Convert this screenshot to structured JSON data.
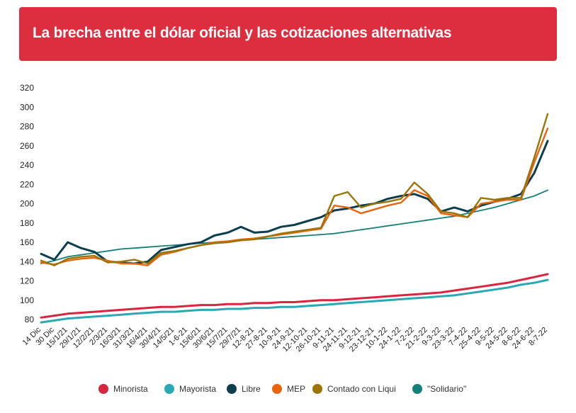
{
  "title": "La brecha entre el dólar oficial y las cotizaciones alternativas",
  "colors": {
    "banner": "#dd2e3f",
    "Minorista": "#d7263d",
    "Mayorista": "#2aa8b3",
    "Libre": "#0d3e4f",
    "MEP": "#e8650e",
    "Contado con Liqui": "#9a7408",
    "Solidario": "#167f77"
  },
  "legend": [
    {
      "key": "Minorista",
      "label": "Minorista"
    },
    {
      "key": "Mayorista",
      "label": "Mayorista"
    },
    {
      "key": "Libre",
      "label": "Libre"
    },
    {
      "key": "MEP",
      "label": "MEP"
    },
    {
      "key": "Contado con Liqui",
      "label": "Contado con Liqui"
    },
    {
      "key": "Solidario",
      "label": "\"Solidario\""
    }
  ],
  "chart_data": {
    "type": "line",
    "title": "La brecha entre el dólar oficial y las cotizaciones alternativas",
    "xlabel": "",
    "ylabel": "",
    "ylim": [
      70,
      320
    ],
    "yticks": [
      80,
      100,
      120,
      140,
      160,
      180,
      200,
      220,
      240,
      260,
      280,
      300,
      320
    ],
    "grid": false,
    "legend_position": "bottom",
    "x": [
      "14 Dic",
      "30 Dic",
      "15/1/21",
      "29/1/21",
      "12/2/21",
      "2/3/21",
      "16/3/21",
      "31/3/21",
      "16/4/21",
      "30/4/21",
      "14/5/21",
      "1-6-21",
      "15/6/21",
      "30/6/21",
      "15/7/21",
      "29/7/21",
      "12-8-21",
      "27-8-21",
      "10-9-21",
      "24-9-21",
      "12-10-21",
      "26-10-21",
      "9-11-21",
      "24-11-21",
      "9-12-21",
      "23-12-21",
      "10-1-22",
      "24-1-22",
      "7-2-22",
      "21-2-22",
      "9-3-22",
      "23-3-22",
      "7-4-22",
      "25-4-22",
      "9-5-22",
      "24-5-22",
      "8-6-22",
      "24-6-22",
      "8-7-22"
    ],
    "series": [
      {
        "name": "Minorista",
        "values": [
          82,
          84,
          86,
          87,
          88,
          89,
          90,
          91,
          92,
          93,
          93,
          94,
          95,
          95,
          96,
          96,
          97,
          97,
          98,
          98,
          99,
          100,
          100,
          101,
          102,
          103,
          104,
          105,
          106,
          107,
          108,
          110,
          112,
          114,
          116,
          118,
          121,
          124,
          127
        ]
      },
      {
        "name": "Mayorista",
        "values": [
          77,
          79,
          81,
          82,
          83,
          84,
          85,
          86,
          87,
          88,
          88,
          89,
          90,
          90,
          91,
          91,
          92,
          92,
          93,
          93,
          94,
          95,
          96,
          97,
          98,
          99,
          100,
          101,
          102,
          103,
          104,
          105,
          107,
          109,
          111,
          113,
          116,
          118,
          121
        ]
      },
      {
        "name": "Libre",
        "values": [
          148,
          142,
          160,
          154,
          150,
          140,
          139,
          138,
          140,
          152,
          155,
          158,
          160,
          167,
          170,
          176,
          170,
          171,
          176,
          178,
          182,
          186,
          193,
          195,
          198,
          200,
          205,
          208,
          210,
          205,
          192,
          196,
          192,
          198,
          202,
          205,
          210,
          232,
          265
        ]
      },
      {
        "name": "MEP",
        "values": [
          139,
          137,
          141,
          143,
          144,
          141,
          138,
          138,
          136,
          147,
          150,
          154,
          157,
          160,
          161,
          163,
          164,
          166,
          168,
          170,
          172,
          174,
          198,
          196,
          190,
          194,
          198,
          201,
          214,
          208,
          190,
          188,
          186,
          200,
          202,
          204,
          204,
          243,
          278
        ]
      },
      {
        "name": "Contado con Liqui",
        "values": [
          141,
          136,
          143,
          145,
          146,
          139,
          140,
          142,
          138,
          149,
          151,
          154,
          157,
          159,
          160,
          162,
          163,
          166,
          169,
          171,
          173,
          175,
          208,
          212,
          196,
          200,
          202,
          205,
          222,
          210,
          192,
          190,
          186,
          206,
          204,
          206,
          206,
          248,
          293
        ]
      },
      {
        "name": "\"Solidario\"",
        "values": [
          138,
          141,
          145,
          147,
          149,
          151,
          153,
          154,
          155,
          156,
          157,
          158,
          159,
          160,
          161,
          162,
          163,
          164,
          165,
          166,
          167,
          168,
          169,
          171,
          173,
          175,
          177,
          179,
          181,
          183,
          185,
          187,
          190,
          193,
          196,
          200,
          204,
          208,
          214
        ]
      }
    ]
  }
}
